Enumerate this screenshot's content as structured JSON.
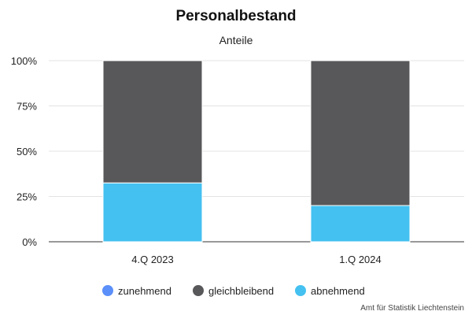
{
  "chart_data": {
    "type": "bar",
    "stacked": true,
    "title": "Personalbestand",
    "subtitle": "Anteile",
    "xlabel": "",
    "ylabel": "",
    "categories": [
      "4.Q 2023",
      "1.Q 2024"
    ],
    "series": [
      {
        "name": "zunehmend",
        "values": [
          0,
          0
        ],
        "color": "#5b8ff9"
      },
      {
        "name": "gleichbleibend",
        "values": [
          67.5,
          80
        ],
        "color": "#58585a"
      },
      {
        "name": "abnehmend",
        "values": [
          32.5,
          20
        ],
        "color": "#44c1f0"
      }
    ],
    "ylim": [
      0,
      100
    ],
    "yticks": [
      "0%",
      "25%",
      "50%",
      "75%",
      "100%"
    ],
    "grid": true,
    "legend_position": "bottom"
  },
  "credit": "Amt für Statistik Liechtenstein"
}
